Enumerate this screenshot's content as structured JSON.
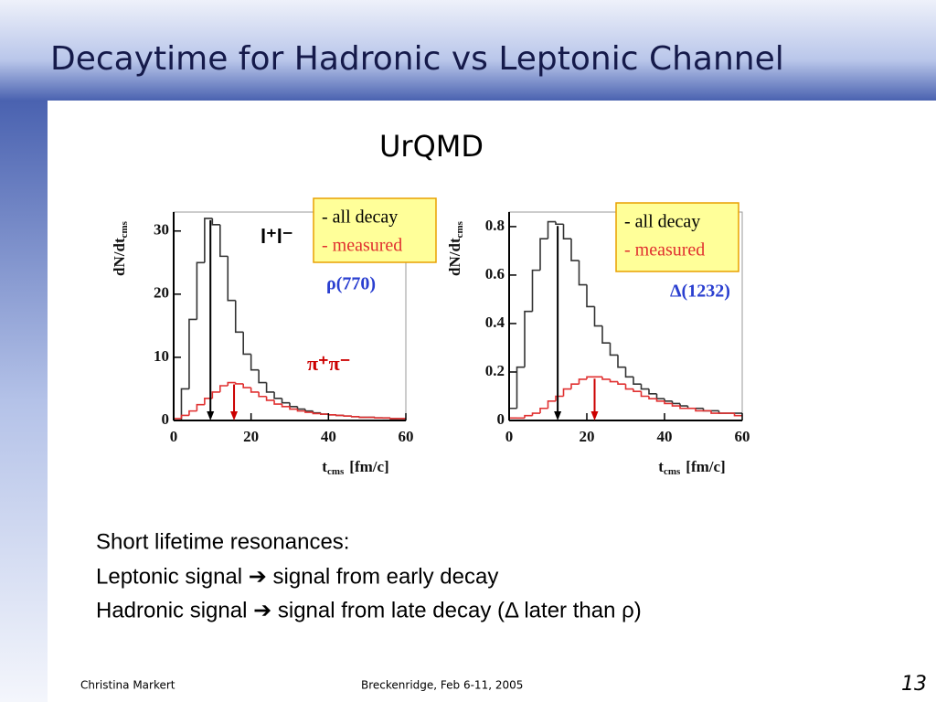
{
  "header": {
    "title": "Decaytime for Hadronic vs Leptonic Channel"
  },
  "subtitle": "UrQMD",
  "chart_data": [
    {
      "type": "histogram",
      "ylabel": {
        "main": "dN/dt",
        "sub": "cms"
      },
      "xlabel": {
        "main": "t",
        "sub": "cms",
        "unit": "[fm/c]"
      },
      "bins": [
        0,
        2,
        4,
        6,
        8,
        10,
        12,
        14,
        16,
        18,
        20,
        22,
        24,
        26,
        28,
        30,
        32,
        34,
        36,
        38,
        40,
        42,
        44,
        46,
        48,
        50,
        52,
        54,
        56,
        58,
        60
      ],
      "xlim": [
        0,
        60
      ],
      "xticks": [
        0,
        20,
        40,
        60
      ],
      "ylim": [
        0,
        33
      ],
      "yticks": [
        0,
        10,
        20,
        30
      ],
      "series": [
        {
          "name": "- all decay",
          "color": "#333333",
          "values": [
            0,
            5,
            16,
            25,
            32,
            31,
            26,
            19,
            14,
            10.5,
            8,
            6,
            4.5,
            3.5,
            2.8,
            2.2,
            1.8,
            1.5,
            1.2,
            1,
            0.9,
            0.8,
            0.7,
            0.6,
            0.5,
            0.5,
            0.4,
            0.4,
            0.3,
            0.3
          ]
        },
        {
          "name": "- measured",
          "color": "#e03030",
          "values": [
            0.3,
            0.8,
            1.5,
            2.5,
            3.5,
            4.5,
            5.5,
            6,
            5.8,
            5.2,
            4.5,
            3.8,
            3.2,
            2.6,
            2.2,
            1.8,
            1.5,
            1.3,
            1.1,
            1,
            0.9,
            0.8,
            0.7,
            0.6,
            0.5,
            0.5,
            0.4,
            0.4,
            0.3,
            0.3
          ]
        }
      ],
      "arrows": [
        {
          "value": 9.5,
          "color": "#000000"
        },
        {
          "value": 15.6,
          "color": "#cc0000"
        }
      ],
      "annotations": [
        {
          "text": "l⁺l⁻",
          "color": "#000000"
        },
        {
          "text": "ρ(770)",
          "color": "#2a3fd0"
        },
        {
          "text": "π⁺π⁻",
          "color": "#cc0000"
        }
      ]
    },
    {
      "type": "histogram",
      "ylabel": {
        "main": "dN/dt",
        "sub": "cms"
      },
      "xlabel": {
        "main": "t",
        "sub": "cms",
        "unit": "[fm/c]"
      },
      "bins": [
        0,
        2,
        4,
        6,
        8,
        10,
        12,
        14,
        16,
        18,
        20,
        22,
        24,
        26,
        28,
        30,
        32,
        34,
        36,
        38,
        40,
        42,
        44,
        46,
        48,
        50,
        52,
        54,
        56,
        58,
        60
      ],
      "xlim": [
        0,
        60
      ],
      "xticks": [
        0,
        20,
        40,
        60
      ],
      "ylim": [
        0,
        0.86
      ],
      "yticks": [
        0,
        0.2,
        0.4,
        0.6,
        0.8
      ],
      "series": [
        {
          "name": "- all decay",
          "color": "#333333",
          "values": [
            0.05,
            0.22,
            0.45,
            0.62,
            0.75,
            0.82,
            0.81,
            0.75,
            0.66,
            0.56,
            0.47,
            0.39,
            0.32,
            0.27,
            0.22,
            0.18,
            0.15,
            0.13,
            0.11,
            0.09,
            0.08,
            0.07,
            0.06,
            0.05,
            0.05,
            0.04,
            0.04,
            0.03,
            0.03,
            0.03
          ]
        },
        {
          "name": "- measured",
          "color": "#e03030",
          "values": [
            0.01,
            0.01,
            0.02,
            0.03,
            0.05,
            0.08,
            0.1,
            0.13,
            0.15,
            0.17,
            0.18,
            0.18,
            0.17,
            0.16,
            0.15,
            0.13,
            0.12,
            0.1,
            0.09,
            0.08,
            0.07,
            0.06,
            0.05,
            0.05,
            0.04,
            0.04,
            0.03,
            0.03,
            0.03,
            0.02
          ]
        }
      ],
      "arrows": [
        {
          "value": 12.5,
          "color": "#000000"
        },
        {
          "value": 22,
          "color": "#cc0000"
        }
      ],
      "annotations": [
        {
          "text": "Δ(1232)",
          "color": "#2a3fd0"
        }
      ]
    }
  ],
  "body": {
    "lines": [
      "Short lifetime resonances:",
      "Leptonic signal ➔ signal from early decay",
      "Hadronic signal ➔ signal from late decay (Δ later than ρ)"
    ]
  },
  "footer": {
    "author": "Christina Markert",
    "event": "Breckenridge, Feb 6-11, 2005",
    "page": "13"
  }
}
